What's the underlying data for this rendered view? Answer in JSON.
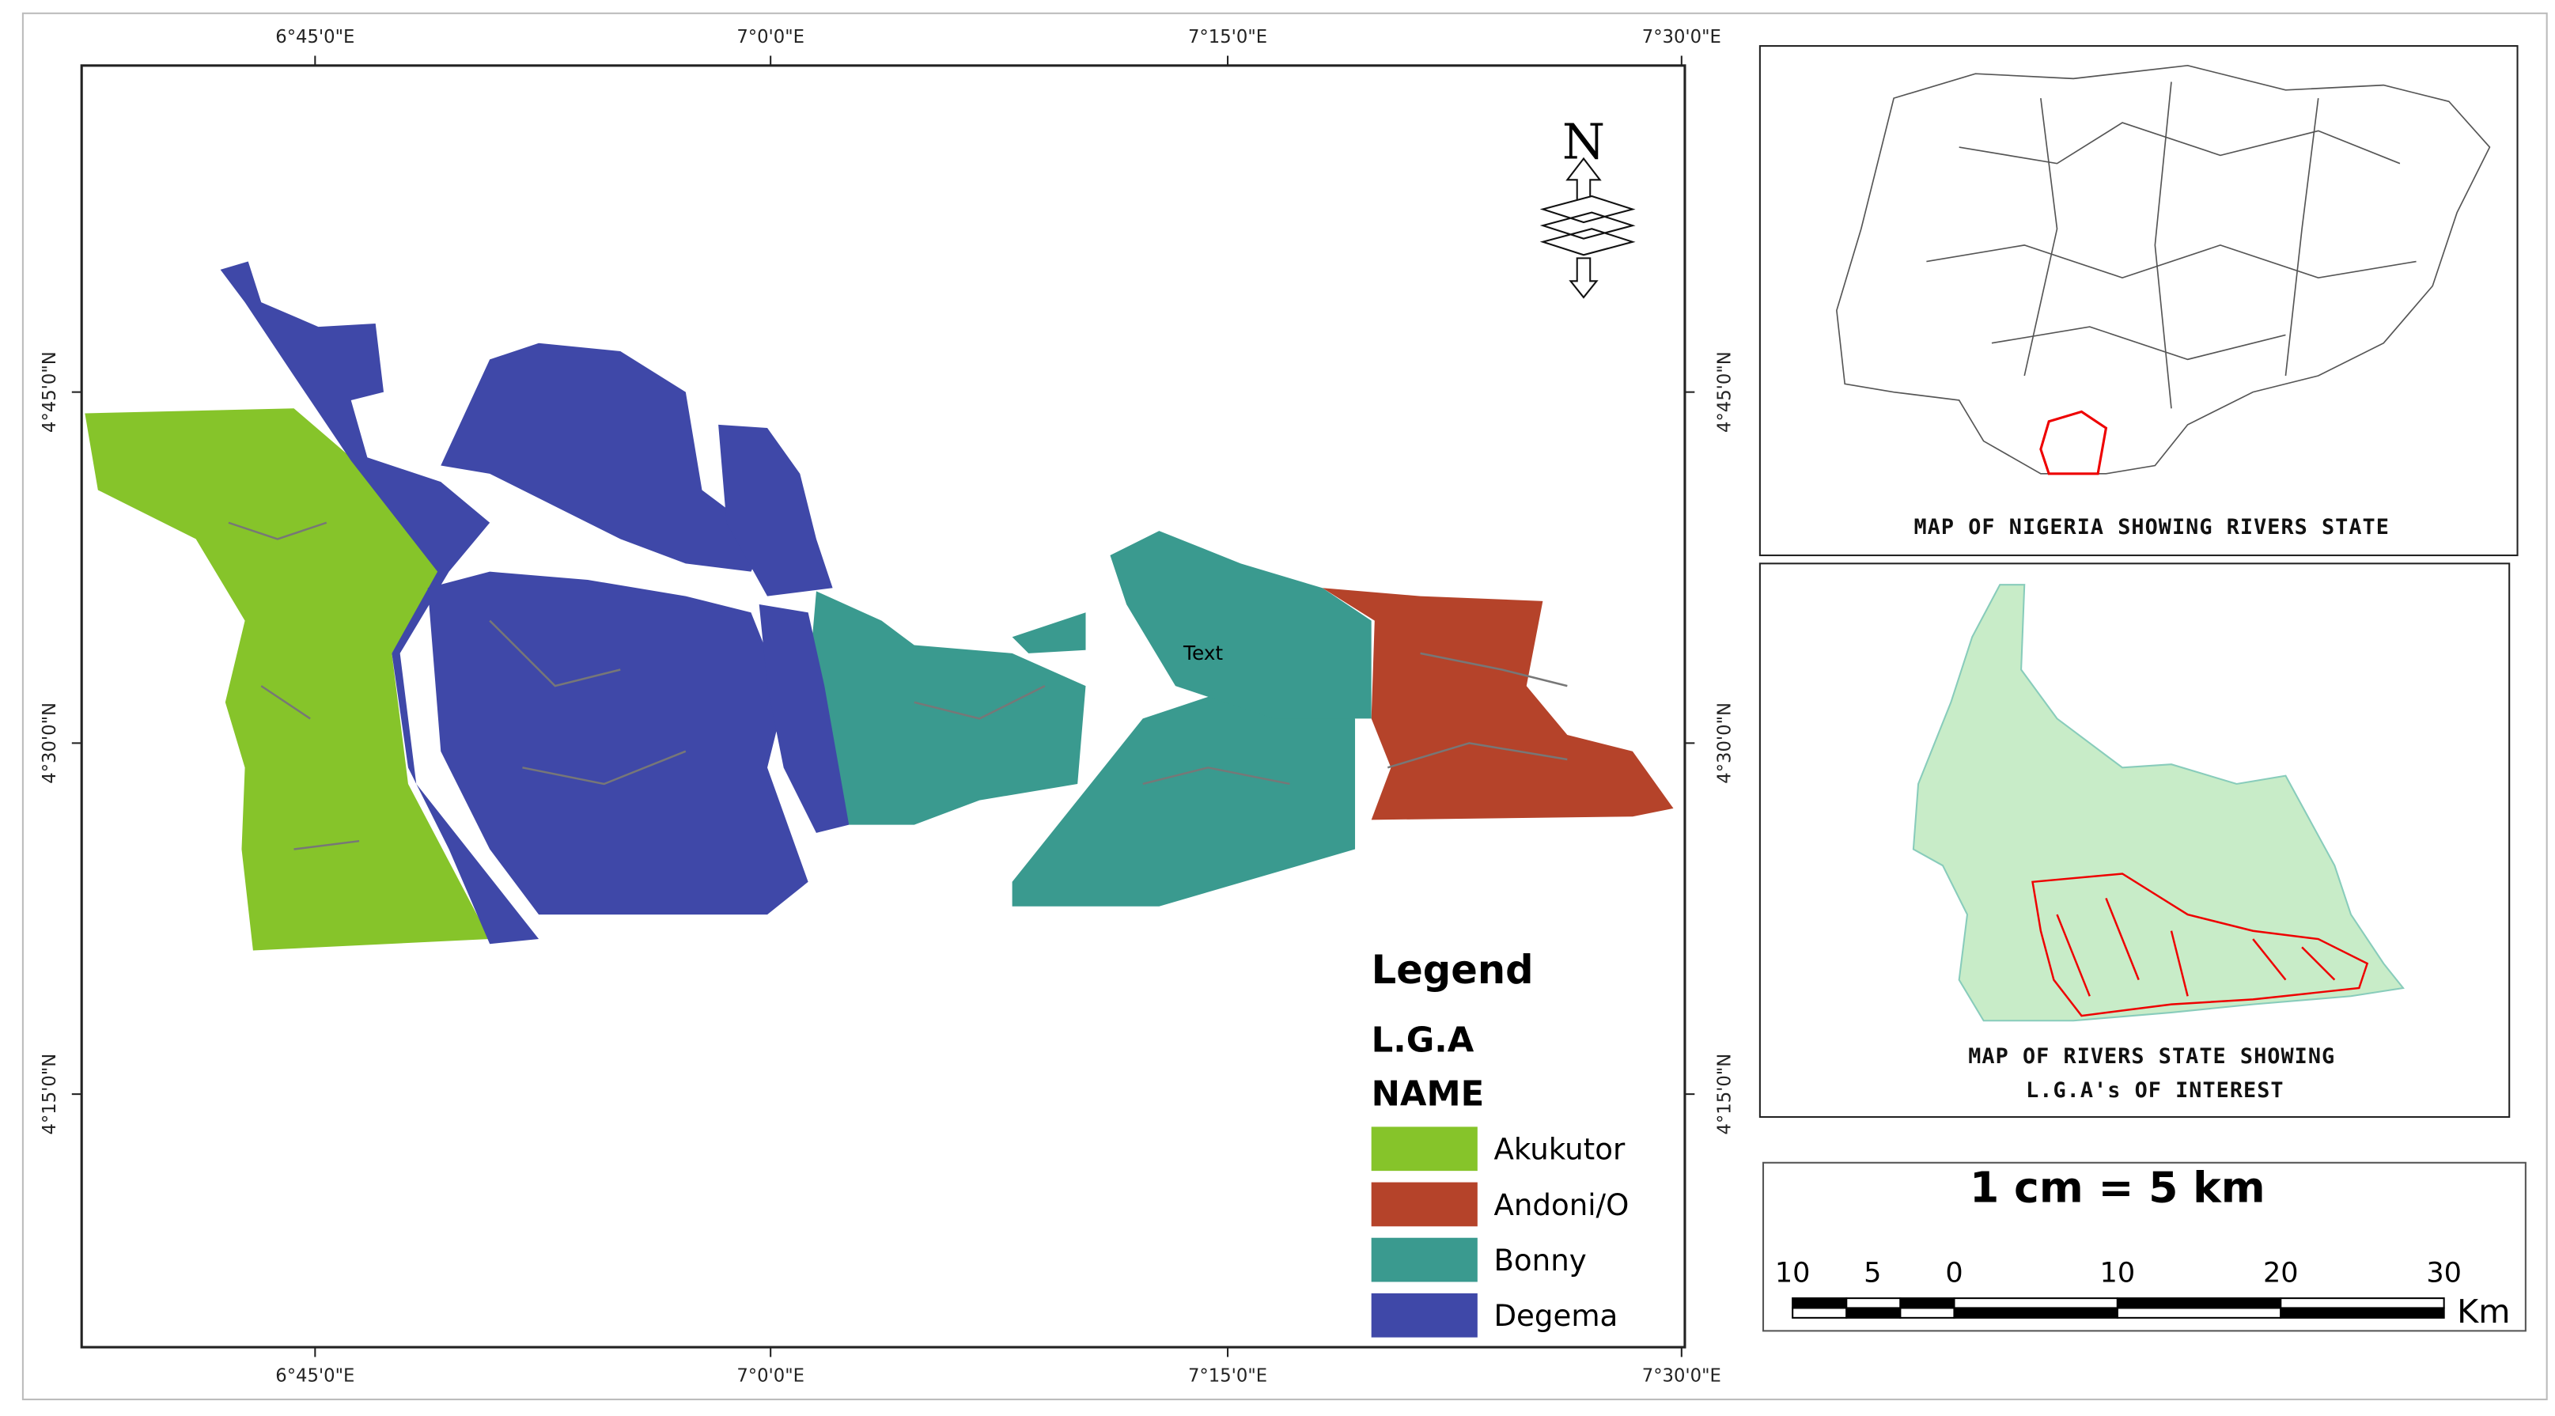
{
  "map": {
    "top_labels": [
      "6°45'0\"E",
      "7°0'0\"E",
      "7°15'0\"E",
      "7°30'0\"E"
    ],
    "bottom_labels": [
      "6°45'0\"E",
      "7°0'0\"E",
      "7°15'0\"E",
      "7°30'0\"E"
    ],
    "left_labels": [
      "4°45'0\"N",
      "4°30'0\"N",
      "4°15'0\"N"
    ],
    "right_labels": [
      "4°45'0\"N",
      "4°30'0\"N",
      "4°15'0\"N"
    ],
    "annotation": "Text",
    "north": "N"
  },
  "legend": {
    "title": "Legend",
    "subtitle": "L.G.A",
    "field": "NAME",
    "items": [
      {
        "name": "Akukutor",
        "color": "#86c42a"
      },
      {
        "name": "Andoni/O",
        "color": "#b5432a"
      },
      {
        "name": "Bonny",
        "color": "#3a9a8f"
      },
      {
        "name": "Degema",
        "color": "#3f48a8"
      }
    ]
  },
  "insets": [
    {
      "title": [
        "MAP OF NIGERIA SHOWING RIVERS STATE"
      ]
    },
    {
      "title": [
        "MAP OF RIVERS STATE SHOWING",
        "L.G.A's OF INTEREST"
      ]
    }
  ],
  "scale": {
    "text": "1 cm = 5 km",
    "labels": [
      10,
      5,
      0,
      10,
      20,
      30
    ],
    "unit": "Km"
  }
}
